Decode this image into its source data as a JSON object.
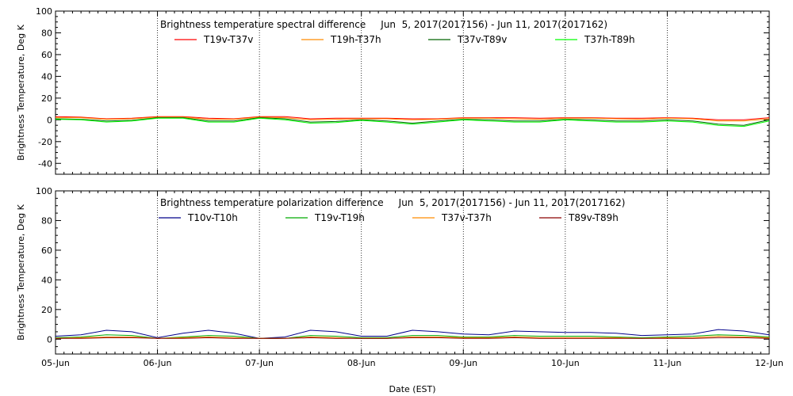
{
  "chart_data": [
    {
      "type": "line",
      "title": "Brightness temperature spectral difference     Jun  5, 2017(2017156) - Jun 11, 2017(2017162)",
      "ylabel": "Brightness Temperature, Deg K",
      "xlabel": "",
      "ylim": [
        -50,
        100
      ],
      "yticks": [
        -40,
        -20,
        0,
        20,
        40,
        60,
        80,
        100
      ],
      "xlim": [
        "2017-06-05",
        "2017-06-12"
      ],
      "xticks": [
        "05-Jun",
        "06-Jun",
        "07-Jun",
        "08-Jun",
        "09-Jun",
        "10-Jun",
        "11-Jun",
        "12-Jun"
      ],
      "show_xtick_labels": false,
      "grid": "vertical dotted at day boundaries",
      "legend_position": "top",
      "x_days": [
        0,
        0.25,
        0.5,
        0.75,
        1,
        1.25,
        1.5,
        1.75,
        2,
        2.25,
        2.5,
        2.75,
        3,
        3.25,
        3.5,
        3.75,
        4,
        4.25,
        4.5,
        4.75,
        5,
        5.25,
        5.5,
        5.75,
        6,
        6.25,
        6.5,
        6.75,
        7
      ],
      "series": [
        {
          "name": "T19v-T37v",
          "color": "#ff0000",
          "values": [
            3,
            2.5,
            1,
            1.5,
            3,
            3,
            1.5,
            1,
            3,
            3,
            1,
            1.5,
            1.5,
            1.5,
            1,
            1,
            2,
            2,
            2,
            1.5,
            2,
            2,
            1.5,
            1.5,
            2,
            1.5,
            0,
            0,
            2
          ]
        },
        {
          "name": "T19h-T37h",
          "color": "#ff8c00",
          "values": [
            2,
            2,
            0.5,
            1,
            2.5,
            2.5,
            0.5,
            0.5,
            2.5,
            2,
            0,
            0.5,
            1,
            1,
            0,
            0.5,
            1.5,
            1.5,
            1,
            0.5,
            1.5,
            1.5,
            1,
            0.5,
            1.5,
            1,
            -1,
            -1,
            1
          ]
        },
        {
          "name": "T37v-T89v",
          "color": "#006400",
          "values": [
            1,
            0.5,
            -1,
            -0.5,
            2,
            2,
            -1,
            -1,
            2,
            1,
            -2,
            -1.5,
            0,
            -1,
            -3,
            -1,
            0.5,
            0,
            -1,
            -1,
            0.5,
            0,
            -1,
            -1,
            0,
            -1,
            -4,
            -5,
            0
          ]
        },
        {
          "name": "T37h-T89h",
          "color": "#00ff00",
          "values": [
            0.5,
            0,
            -2,
            -1,
            1.5,
            1.5,
            -2,
            -2,
            1.5,
            0,
            -3,
            -2.5,
            -0.5,
            -2,
            -4,
            -2,
            0,
            -1,
            -2,
            -2,
            0,
            -1,
            -2,
            -2,
            -1,
            -2,
            -5,
            -6,
            -1
          ]
        }
      ]
    },
    {
      "type": "line",
      "title": "Brightness temperature polarization difference     Jun  5, 2017(2017156) - Jun 11, 2017(2017162)",
      "ylabel": "Brightness Temperature, Deg K",
      "xlabel": "Date (EST)",
      "ylim": [
        -10,
        100
      ],
      "yticks": [
        0,
        20,
        40,
        60,
        80,
        100
      ],
      "xlim": [
        "2017-06-05",
        "2017-06-12"
      ],
      "xticks": [
        "05-Jun",
        "06-Jun",
        "07-Jun",
        "08-Jun",
        "09-Jun",
        "10-Jun",
        "11-Jun",
        "12-Jun"
      ],
      "show_xtick_labels": true,
      "grid": "vertical dotted at day boundaries",
      "legend_position": "top",
      "x_days": [
        0,
        0.25,
        0.5,
        0.75,
        1,
        1.25,
        1.5,
        1.75,
        2,
        2.25,
        2.5,
        2.75,
        3,
        3.25,
        3.5,
        3.75,
        4,
        4.25,
        4.5,
        4.75,
        5,
        5.25,
        5.5,
        5.75,
        6,
        6.25,
        6.5,
        6.75,
        7
      ],
      "series": [
        {
          "name": "T10v-T10h",
          "color": "#00008b",
          "values": [
            2,
            3,
            6,
            5,
            1,
            4,
            6,
            4,
            0.5,
            1.5,
            6,
            5,
            2,
            2,
            6,
            5,
            3.5,
            3,
            5.5,
            5,
            4.5,
            4.5,
            4,
            2.5,
            3,
            3.5,
            6.5,
            5.5,
            3
          ]
        },
        {
          "name": "T19v-T19h",
          "color": "#00aa00",
          "values": [
            1,
            1.5,
            3,
            2.5,
            0.5,
            1.5,
            2.5,
            2,
            0.5,
            0.5,
            2.5,
            2,
            1,
            1,
            2.5,
            2.5,
            1.5,
            1.5,
            2.5,
            2,
            2,
            2,
            1.5,
            1,
            1.5,
            2,
            3,
            2.5,
            1.5
          ]
        },
        {
          "name": "T37v-T37h",
          "color": "#ff8c00",
          "values": [
            0.5,
            1,
            1.5,
            1.5,
            0.5,
            1,
            1.5,
            1,
            0.5,
            0.5,
            1.5,
            1,
            0.5,
            0.5,
            1.5,
            1.5,
            1,
            1,
            1.5,
            1,
            1,
            1,
            1,
            0.5,
            1,
            1,
            2,
            1.5,
            1
          ]
        },
        {
          "name": "T89v-T89h",
          "color": "#8b0000",
          "values": [
            0.5,
            0.5,
            1,
            1,
            0.5,
            0.5,
            1,
            0.5,
            0.5,
            0.5,
            1,
            0.5,
            0.5,
            0.5,
            1,
            1,
            0.5,
            0.5,
            1,
            0.5,
            0.5,
            0.5,
            0.5,
            0.5,
            0.5,
            0.5,
            1,
            1,
            0.5
          ]
        }
      ]
    }
  ]
}
